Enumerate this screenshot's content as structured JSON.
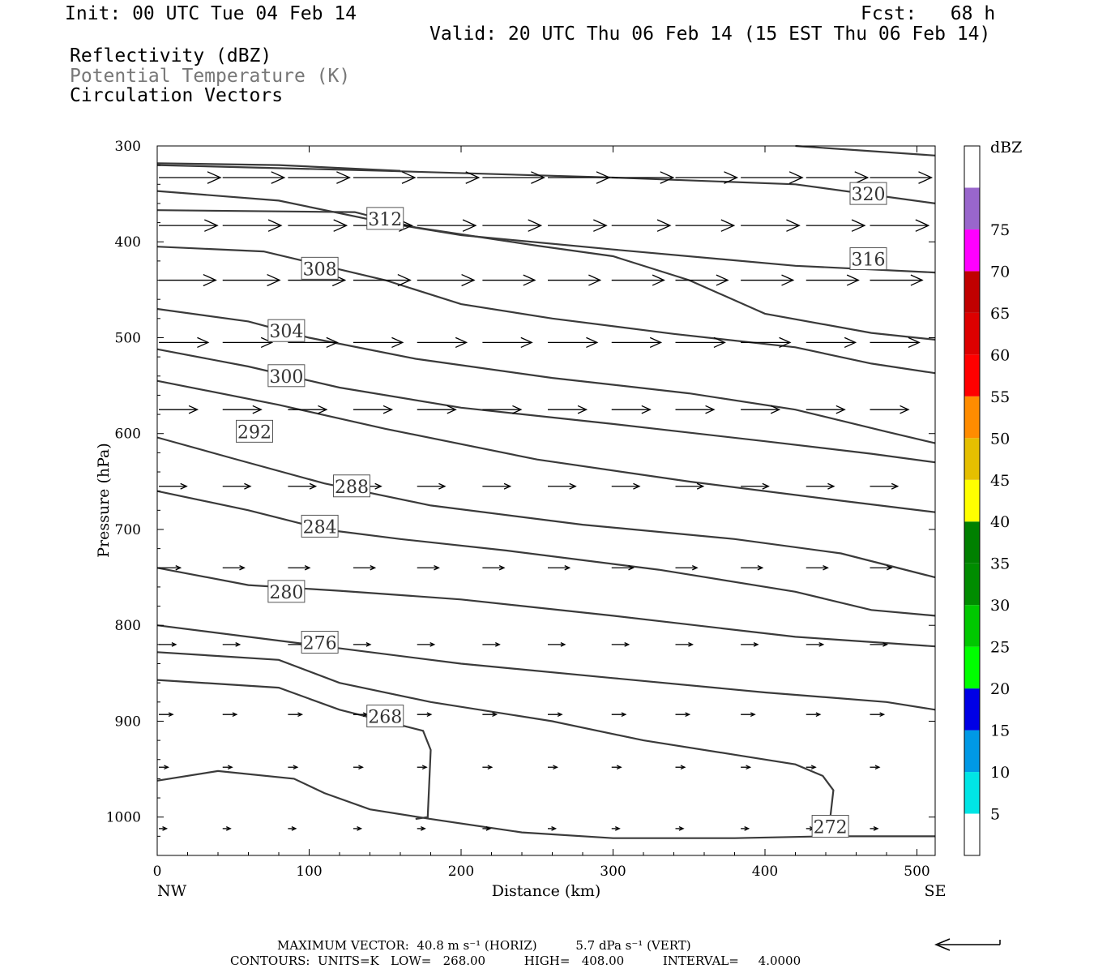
{
  "header": {
    "init": "Init: 00 UTC Tue 04 Feb 14",
    "fcst": "Fcst:   68 h",
    "valid": "Valid: 20 UTC Thu 06 Feb 14 (15 EST Thu 06 Feb 14)",
    "field1": "Reflectivity (dBZ)",
    "field2": "Potential Temperature (K)",
    "field3": "Circulation Vectors"
  },
  "footer": {
    "max_vector": "MAXIMUM VECTOR:  40.8 m s⁻¹ (HORIZ)          5.7 dPa s⁻¹ (VERT)",
    "contours": "CONTOURS:  UNITS=K   LOW=   268.00          HIGH=   408.00          INTERVAL=     4.0000"
  },
  "colors": {
    "contour": "#3a3a3a",
    "vector": "#000000"
  },
  "colorbar": {
    "unit": "dBZ",
    "labels": [
      "5",
      "10",
      "15",
      "20",
      "25",
      "30",
      "35",
      "40",
      "45",
      "50",
      "55",
      "60",
      "65",
      "70",
      "75"
    ],
    "colors": [
      "#ffffff",
      "#00e5e5",
      "#0099e5",
      "#0000e5",
      "#00ff00",
      "#00c800",
      "#008c00",
      "#008000",
      "#ffff00",
      "#e5bf00",
      "#ff8c00",
      "#ff0000",
      "#dd0000",
      "#c00000",
      "#ff00ff",
      "#9966cc",
      "#ffffff"
    ]
  },
  "chart_data": {
    "type": "cross-section",
    "title": "",
    "xlabel": "Distance (km)",
    "ylabel": "Pressure (hPa)",
    "xlim": [
      0,
      512
    ],
    "ylim": [
      1040,
      300
    ],
    "x_ticks": [
      0,
      100,
      200,
      300,
      400,
      500
    ],
    "y_ticks": [
      300,
      400,
      500,
      600,
      700,
      800,
      900,
      1000
    ],
    "x_end_labels": {
      "left": "NW",
      "right": "SE"
    },
    "contours": [
      {
        "label": "320",
        "label_at": [
          468,
          350
        ],
        "points": [
          [
            0,
            320
          ],
          [
            150,
            326
          ],
          [
            300,
            333
          ],
          [
            420,
            340
          ],
          [
            512,
            360
          ]
        ]
      },
      {
        "label": "316",
        "label_at": [
          468,
          418
        ],
        "points": [
          [
            0,
            347
          ],
          [
            80,
            357
          ],
          [
            150,
            380
          ],
          [
            200,
            393
          ],
          [
            300,
            408
          ],
          [
            420,
            425
          ],
          [
            512,
            432
          ]
        ]
      },
      {
        "label": "312",
        "label_at": [
          150,
          376
        ],
        "points": [
          [
            0,
            367
          ],
          [
            130,
            369
          ],
          [
            170,
            385
          ],
          [
            250,
            404
          ],
          [
            300,
            415
          ],
          [
            350,
            440
          ],
          [
            400,
            475
          ],
          [
            470,
            495
          ],
          [
            512,
            502
          ]
        ]
      },
      {
        "label": "308",
        "label_at": [
          107,
          428
        ],
        "points": [
          [
            0,
            405
          ],
          [
            70,
            410
          ],
          [
            150,
            440
          ],
          [
            200,
            465
          ],
          [
            260,
            480
          ],
          [
            340,
            496
          ],
          [
            420,
            510
          ],
          [
            470,
            527
          ],
          [
            512,
            537
          ]
        ]
      },
      {
        "label": "304",
        "label_at": [
          85,
          493
        ],
        "points": [
          [
            0,
            470
          ],
          [
            60,
            483
          ],
          [
            100,
            500
          ],
          [
            170,
            522
          ],
          [
            260,
            542
          ],
          [
            350,
            558
          ],
          [
            420,
            575
          ],
          [
            480,
            598
          ],
          [
            512,
            610
          ]
        ]
      },
      {
        "label": "300",
        "label_at": [
          85,
          540
        ],
        "points": [
          [
            0,
            512
          ],
          [
            60,
            530
          ],
          [
            120,
            552
          ],
          [
            200,
            573
          ],
          [
            300,
            590
          ],
          [
            400,
            608
          ],
          [
            470,
            621
          ],
          [
            512,
            630
          ]
        ]
      },
      {
        "label": "292",
        "label_at": [
          64,
          598
        ],
        "points": [
          [
            0,
            545
          ],
          [
            80,
            570
          ],
          [
            150,
            595
          ],
          [
            250,
            627
          ],
          [
            350,
            650
          ],
          [
            450,
            670
          ],
          [
            512,
            682
          ]
        ]
      },
      {
        "label": "288",
        "label_at": [
          128,
          655
        ],
        "points": [
          [
            0,
            604
          ],
          [
            50,
            626
          ],
          [
            110,
            652
          ],
          [
            180,
            675
          ],
          [
            280,
            695
          ],
          [
            380,
            710
          ],
          [
            450,
            725
          ],
          [
            512,
            750
          ]
        ]
      },
      {
        "label": "284",
        "label_at": [
          107,
          697
        ],
        "points": [
          [
            0,
            660
          ],
          [
            60,
            680
          ],
          [
            110,
            700
          ],
          [
            160,
            710
          ],
          [
            230,
            722
          ],
          [
            330,
            742
          ],
          [
            420,
            765
          ],
          [
            470,
            784
          ],
          [
            512,
            790
          ]
        ]
      },
      {
        "label": "280",
        "label_at": [
          85,
          765
        ],
        "points": [
          [
            0,
            740
          ],
          [
            60,
            758
          ],
          [
            120,
            764
          ],
          [
            200,
            773
          ],
          [
            300,
            790
          ],
          [
            420,
            812
          ],
          [
            512,
            822
          ]
        ]
      },
      {
        "label": "276",
        "label_at": [
          107,
          818
        ],
        "points": [
          [
            0,
            800
          ],
          [
            60,
            812
          ],
          [
            110,
            822
          ],
          [
            200,
            840
          ],
          [
            300,
            855
          ],
          [
            400,
            870
          ],
          [
            480,
            880
          ],
          [
            512,
            888
          ]
        ]
      },
      {
        "label": "268",
        "label_at": [
          150,
          895
        ],
        "points": [
          [
            0,
            857
          ],
          [
            80,
            865
          ],
          [
            120,
            888
          ],
          [
            175,
            910
          ],
          [
            180,
            930
          ],
          [
            178,
            1000
          ],
          [
            170,
            1002
          ]
        ]
      },
      {
        "label": "272",
        "label_at": [
          443,
          1010
        ],
        "points": [
          [
            0,
            962
          ],
          [
            40,
            952
          ],
          [
            90,
            960
          ],
          [
            110,
            975
          ],
          [
            140,
            992
          ],
          [
            180,
            1002
          ],
          [
            240,
            1016
          ],
          [
            300,
            1022
          ],
          [
            380,
            1022
          ],
          [
            440,
            1020
          ],
          [
            512,
            1020
          ]
        ]
      },
      {
        "label": "",
        "label_at": null,
        "points": [
          [
            0,
            828
          ],
          [
            80,
            836
          ],
          [
            120,
            860
          ],
          [
            180,
            880
          ],
          [
            260,
            900
          ],
          [
            320,
            920
          ],
          [
            380,
            935
          ],
          [
            420,
            945
          ],
          [
            438,
            957
          ],
          [
            445,
            972
          ],
          [
            443,
            1000
          ]
        ]
      },
      {
        "label": "",
        "label_at": null,
        "points": [
          [
            0,
            318
          ],
          [
            80,
            320
          ],
          [
            160,
            326
          ]
        ]
      },
      {
        "label": "",
        "label_at": null,
        "points": [
          [
            420,
            300
          ],
          [
            512,
            310
          ]
        ]
      }
    ],
    "vectors": {
      "x_positions": [
        0,
        42,
        85,
        128,
        170,
        213,
        256,
        298,
        340,
        383,
        426,
        468
      ],
      "rows": [
        {
          "p": 333,
          "u": [
            40,
            40,
            40,
            40,
            40,
            40,
            40,
            40,
            40,
            40,
            40,
            40
          ]
        },
        {
          "p": 383,
          "u": [
            38,
            38,
            38,
            38,
            38,
            38,
            38,
            38,
            38,
            38,
            38,
            38
          ]
        },
        {
          "p": 440,
          "u": [
            37,
            37,
            37,
            37,
            37,
            34,
            34,
            34,
            34,
            34,
            34,
            34
          ]
        },
        {
          "p": 505,
          "u": [
            32,
            32,
            32,
            32,
            32,
            32,
            32,
            32,
            32,
            32,
            32,
            32
          ]
        },
        {
          "p": 575,
          "u": [
            25,
            25,
            25,
            25,
            25,
            25,
            25,
            25,
            25,
            25,
            25,
            25
          ]
        },
        {
          "p": 655,
          "u": [
            18,
            18,
            18,
            18,
            18,
            18,
            18,
            18,
            18,
            18,
            18,
            18
          ]
        },
        {
          "p": 740,
          "u": [
            14,
            14,
            14,
            14,
            14,
            14,
            14,
            14,
            14,
            14,
            14,
            14
          ]
        },
        {
          "p": 820,
          "u": [
            11,
            11,
            11,
            11,
            11,
            11,
            11,
            11,
            11,
            11,
            11,
            11
          ]
        },
        {
          "p": 893,
          "u": [
            9,
            9,
            9,
            9,
            9,
            9,
            9,
            9,
            9,
            9,
            9,
            9
          ]
        },
        {
          "p": 948,
          "u": [
            6,
            6,
            6,
            6,
            6,
            6,
            6,
            6,
            6,
            6,
            6,
            6
          ]
        },
        {
          "p": 1012,
          "u": [
            5,
            5,
            5,
            5,
            5,
            5,
            5,
            5,
            5,
            5,
            5,
            5
          ]
        }
      ]
    }
  }
}
